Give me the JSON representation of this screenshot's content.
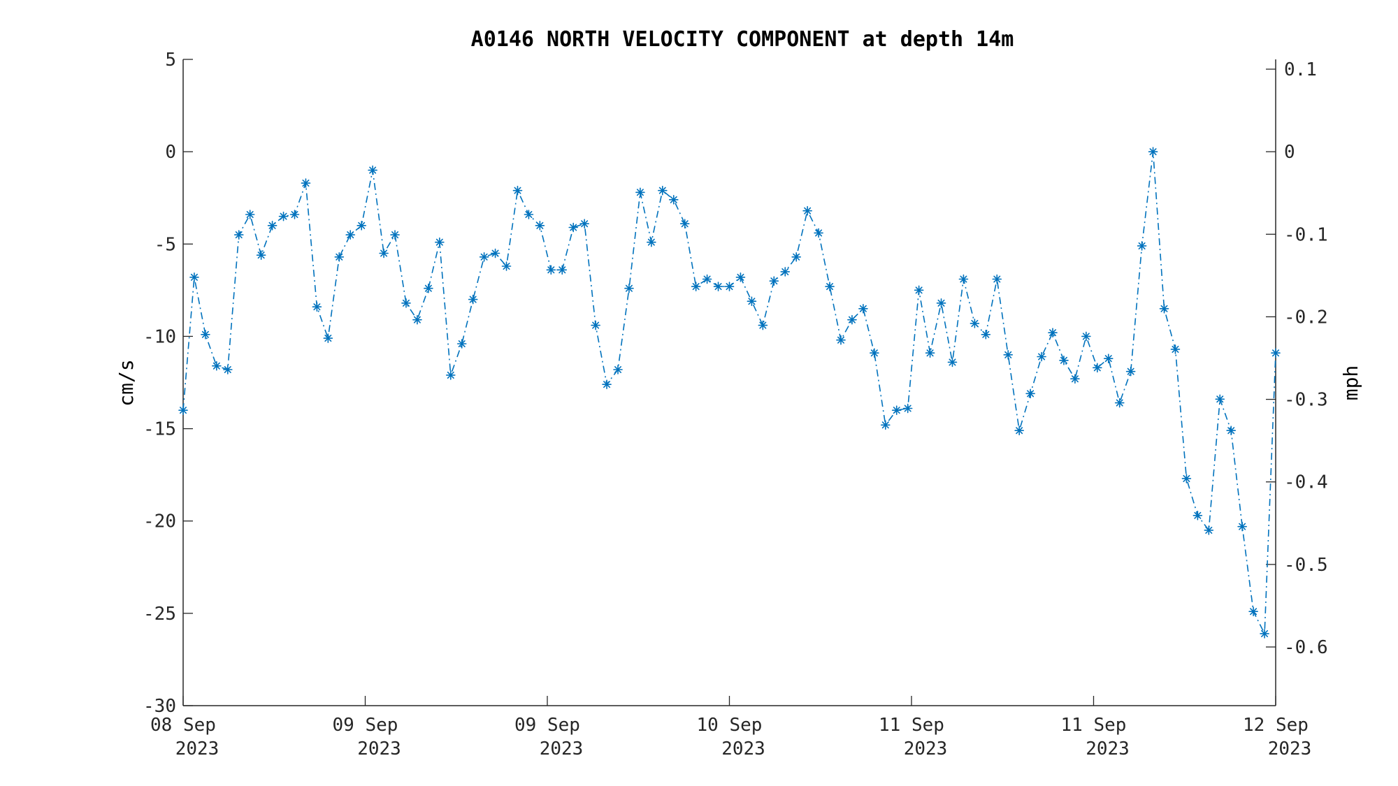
{
  "chart_data": {
    "type": "line",
    "title": "A0146 NORTH VELOCITY COMPONENT at depth 14m",
    "ylabel": "cm/s",
    "y2label": "mph",
    "ylim": [
      -30,
      5
    ],
    "yticks": [
      "5",
      "0",
      "-5",
      "-10",
      "-15",
      "-20",
      "-25",
      "-30"
    ],
    "y2ticks": [
      "0.1",
      "0",
      "-0.1",
      "-0.2",
      "-0.3",
      "-0.4",
      "-0.5",
      "-0.6"
    ],
    "xticks": [
      {
        "day": "08 Sep",
        "year": "2023"
      },
      {
        "day": "09 Sep",
        "year": "2023"
      },
      {
        "day": "09 Sep",
        "year": "2023"
      },
      {
        "day": "10 Sep",
        "year": "2023"
      },
      {
        "day": "11 Sep",
        "year": "2023"
      },
      {
        "day": "11 Sep",
        "year": "2023"
      },
      {
        "day": "12 Sep",
        "year": "2023"
      }
    ],
    "grid": false,
    "marker": "asterisk",
    "line_style": "dash-dot",
    "color": "#0072BD",
    "series": [
      {
        "values": [
          -14.0,
          -6.8,
          -9.9,
          -11.6,
          -11.8,
          -4.5,
          -3.4,
          -5.6,
          -4.0,
          -3.5,
          -3.4,
          -1.7,
          -8.4,
          -10.1,
          -5.7,
          -4.5,
          -4.0,
          -1.0,
          -5.5,
          -4.5,
          -8.2,
          -9.1,
          -7.4,
          -4.9,
          -12.1,
          -10.4,
          -8.0,
          -5.7,
          -5.5,
          -6.2,
          -2.1,
          -3.4,
          -4.0,
          -6.4,
          -6.4,
          -4.1,
          -3.9,
          -9.4,
          -12.6,
          -11.8,
          -7.4,
          -2.2,
          -4.9,
          -2.1,
          -2.6,
          -3.9,
          -7.3,
          -6.9,
          -7.3,
          -7.3,
          -6.8,
          -8.1,
          -9.4,
          -7.0,
          -6.5,
          -5.7,
          -3.2,
          -4.4,
          -7.3,
          -10.2,
          -9.1,
          -8.5,
          -10.9,
          -14.8,
          -14.0,
          -13.9,
          -7.5,
          -10.9,
          -8.2,
          -11.4,
          -6.9,
          -9.3,
          -9.9,
          -6.9,
          -11.0,
          -15.1,
          -13.1,
          -11.1,
          -9.8,
          -11.3,
          -12.3,
          -10.0,
          -11.7,
          -11.2,
          -13.6,
          -11.9,
          -5.1,
          0.0,
          -8.5,
          -10.7,
          -17.7,
          -19.7,
          -20.5,
          -13.4,
          -15.1,
          -20.3,
          -24.9,
          -26.1,
          -10.9
        ]
      }
    ]
  }
}
